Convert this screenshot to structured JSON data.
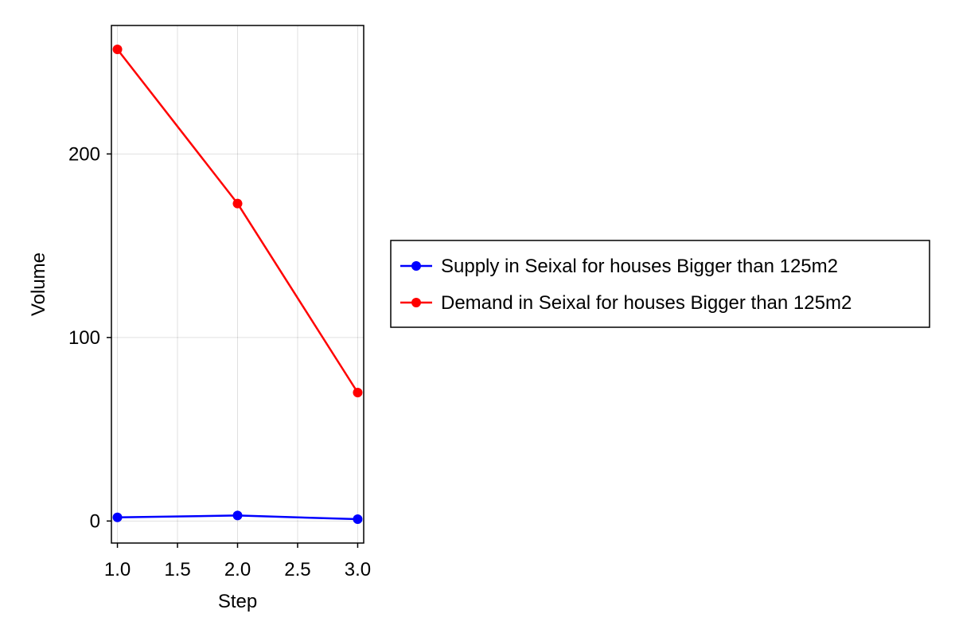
{
  "chart_data": {
    "type": "line",
    "title": "",
    "xlabel": "Step",
    "ylabel": "Volume",
    "xlim": [
      0.95,
      3.05
    ],
    "ylim": [
      -12,
      270
    ],
    "x_ticks": [
      1.0,
      1.5,
      2.0,
      2.5,
      3.0
    ],
    "x_tick_labels": [
      "1.0",
      "1.5",
      "2.0",
      "2.5",
      "3.0"
    ],
    "y_ticks": [
      0,
      100,
      200
    ],
    "y_tick_labels": [
      "0",
      "100",
      "200"
    ],
    "grid": true,
    "legend_position": "right",
    "series": [
      {
        "name": "Supply in Seixal for houses Bigger than 125m2",
        "color": "#0000ff",
        "x": [
          1,
          2,
          3
        ],
        "y": [
          2,
          3,
          1
        ]
      },
      {
        "name": "Demand in Seixal for houses Bigger than 125m2",
        "color": "#ff0000",
        "x": [
          1,
          2,
          3
        ],
        "y": [
          257,
          173,
          70
        ]
      }
    ]
  }
}
